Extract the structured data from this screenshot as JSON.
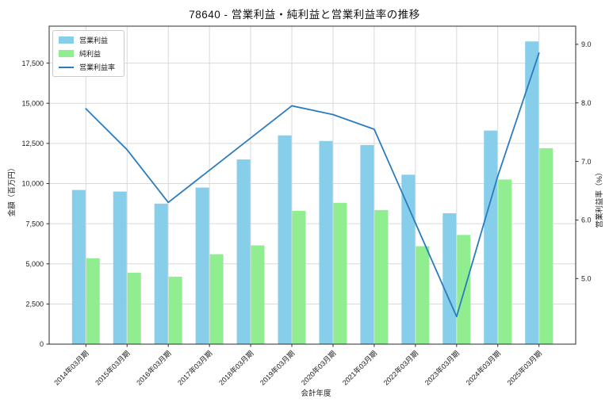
{
  "title": "78640 - 営業利益・純利益と営業利益率の推移",
  "legend": {
    "items": [
      {
        "label": "営業利益",
        "type": "bar",
        "color": "#87ceeb"
      },
      {
        "label": "純利益",
        "type": "bar",
        "color": "#90ee90"
      },
      {
        "label": "営業利益率",
        "type": "line",
        "color": "#2b7cbe"
      }
    ]
  },
  "axes": {
    "left": {
      "label": "金額（百万円）",
      "tick_labels": [
        "0",
        "2,500",
        "5,000",
        "7,500",
        "10,000",
        "12,500",
        "15,000",
        "17,500"
      ],
      "tick_values": [
        0,
        2500,
        5000,
        7500,
        10000,
        12500,
        15000,
        17500
      ]
    },
    "right": {
      "label": "営業利益率（%）",
      "tick_labels": [
        "5.0",
        "6.0",
        "7.0",
        "8.0",
        "9.0"
      ],
      "tick_values": [
        5.0,
        6.0,
        7.0,
        8.0,
        9.0
      ]
    },
    "x": {
      "label": "会計年度"
    }
  },
  "chart_data": {
    "type": "bar+line",
    "title": "78640 - 営業利益・純利益と営業利益率の推移",
    "xlabel": "会計年度",
    "ylabel_left": "金額（百万円）",
    "ylabel_right": "営業利益率（%）",
    "categories": [
      "2014年03月期",
      "2015年03月期",
      "2016年03月期",
      "2017年03月期",
      "2018年03月期",
      "2019年03月期",
      "2020年03月期",
      "2021年03月期",
      "2022年03月期",
      "2023年03月期",
      "2024年03月期",
      "2025年03月期"
    ],
    "series": [
      {
        "name": "営業利益",
        "type": "bar",
        "axis": "left",
        "color": "#87ceeb",
        "values": [
          9600,
          9500,
          8750,
          9750,
          11500,
          13000,
          12650,
          12400,
          10550,
          8150,
          13300,
          18850
        ]
      },
      {
        "name": "純利益",
        "type": "bar",
        "axis": "left",
        "color": "#90ee90",
        "values": [
          5350,
          4450,
          4200,
          5600,
          6150,
          8300,
          8800,
          8350,
          6100,
          6800,
          10250,
          12200
        ]
      },
      {
        "name": "営業利益率",
        "type": "line",
        "axis": "right",
        "color": "#2b7cbe",
        "values": [
          7.9,
          7.2,
          6.3,
          6.85,
          7.4,
          7.95,
          7.8,
          7.55,
          5.95,
          4.35,
          6.75,
          8.85
        ]
      }
    ],
    "left_ylim": [
      0,
      19800
    ],
    "right_ylim": [
      3.88,
      9.31
    ],
    "grid": true,
    "legend_position": "upper left",
    "colors": {
      "grid": "#d9d9d9",
      "spine": "#2b2b2b",
      "text": "#1a1a1a",
      "background": "#ffffff"
    }
  }
}
